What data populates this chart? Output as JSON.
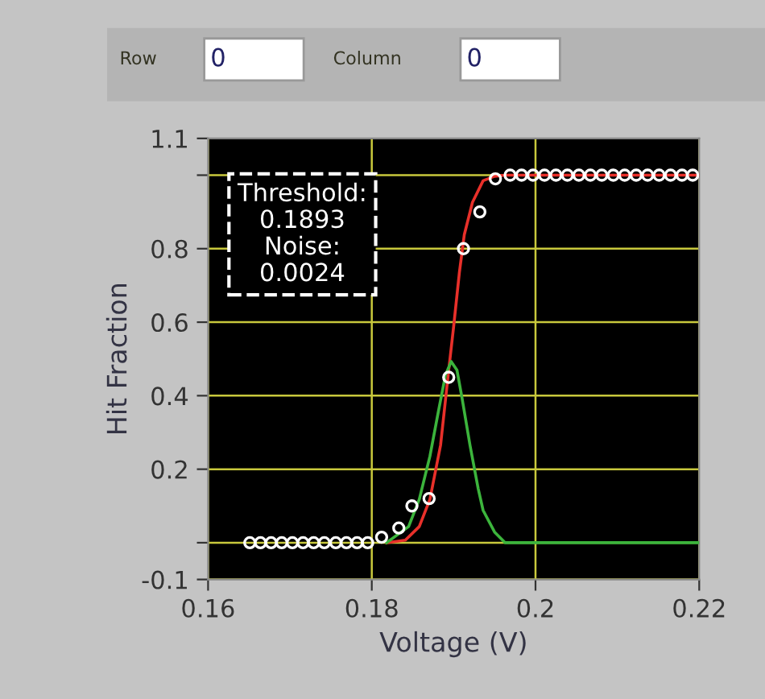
{
  "chart_data": {
    "type": "line",
    "xlabel": "Voltage (V)",
    "ylabel": "Hit Fraction",
    "xlim": [
      0.16,
      0.22
    ],
    "xticks": [
      0.16,
      0.18,
      0.2,
      0.22
    ],
    "ylim": [
      -0.1,
      1.1
    ],
    "yticks": [
      {
        "value": -0.1,
        "label": "-0.1"
      },
      {
        "value": 0,
        "label": null
      },
      0.2,
      0.4,
      0.6,
      0.8,
      {
        "value": 1.0,
        "label": null
      },
      1.1
    ],
    "grid": true,
    "legend": false,
    "annotations": [
      "Threshold:\n0.1893\nNoise:\n0.0024",
      "Row",
      "0",
      "Column",
      "0"
    ],
    "series": [
      {
        "color": "#e8302a",
        "marker": "none",
        "x": [
          0.1818,
          0.1841,
          0.1858,
          0.1871,
          0.1884,
          0.1894,
          0.19,
          0.1907,
          0.1913,
          0.1923,
          0.1936,
          0.195,
          0.1963,
          0.2199
        ],
        "values": [
          0,
          0.007,
          0.044,
          0.118,
          0.265,
          0.47,
          0.588,
          0.735,
          0.838,
          0.926,
          0.985,
          0.997,
          1.0,
          1.0
        ]
      },
      {
        "color": "#3cb43c",
        "marker": "none",
        "x": [
          0.1818,
          0.1845,
          0.1858,
          0.1871,
          0.1881,
          0.189,
          0.1897,
          0.1904,
          0.191,
          0.192,
          0.193,
          0.1936,
          0.195,
          0.1963,
          0.2199
        ],
        "values": [
          0,
          0.044,
          0.118,
          0.235,
          0.353,
          0.456,
          0.493,
          0.47,
          0.397,
          0.265,
          0.147,
          0.088,
          0.029,
          0,
          0
        ]
      },
      {
        "type": "scatter",
        "color": "#ffffff",
        "marker": "circle",
        "x": [
          0.1651,
          0.1664,
          0.1677,
          0.169,
          0.1703,
          0.1716,
          0.1729,
          0.1742,
          0.1756,
          0.1769,
          0.1782,
          0.1795,
          0.1812,
          0.1833,
          0.1849,
          0.187,
          0.1894,
          0.1912,
          0.1932,
          0.1951,
          0.1969,
          0.1983,
          0.1997,
          0.2011,
          0.2025,
          0.2039,
          0.2053,
          0.2067,
          0.2081,
          0.2095,
          0.2109,
          0.2123,
          0.2137,
          0.2151,
          0.2165,
          0.2179,
          0.2192
        ],
        "values": [
          0,
          0,
          0,
          0,
          0,
          0,
          0,
          0,
          0,
          0,
          0,
          0,
          0.015,
          0.04,
          0.1,
          0.12,
          0.45,
          0.8,
          0.9,
          0.99,
          1,
          1,
          1,
          1,
          1,
          1,
          1,
          1,
          1,
          1,
          1,
          1,
          1,
          1,
          1,
          1,
          1
        ]
      }
    ]
  }
}
